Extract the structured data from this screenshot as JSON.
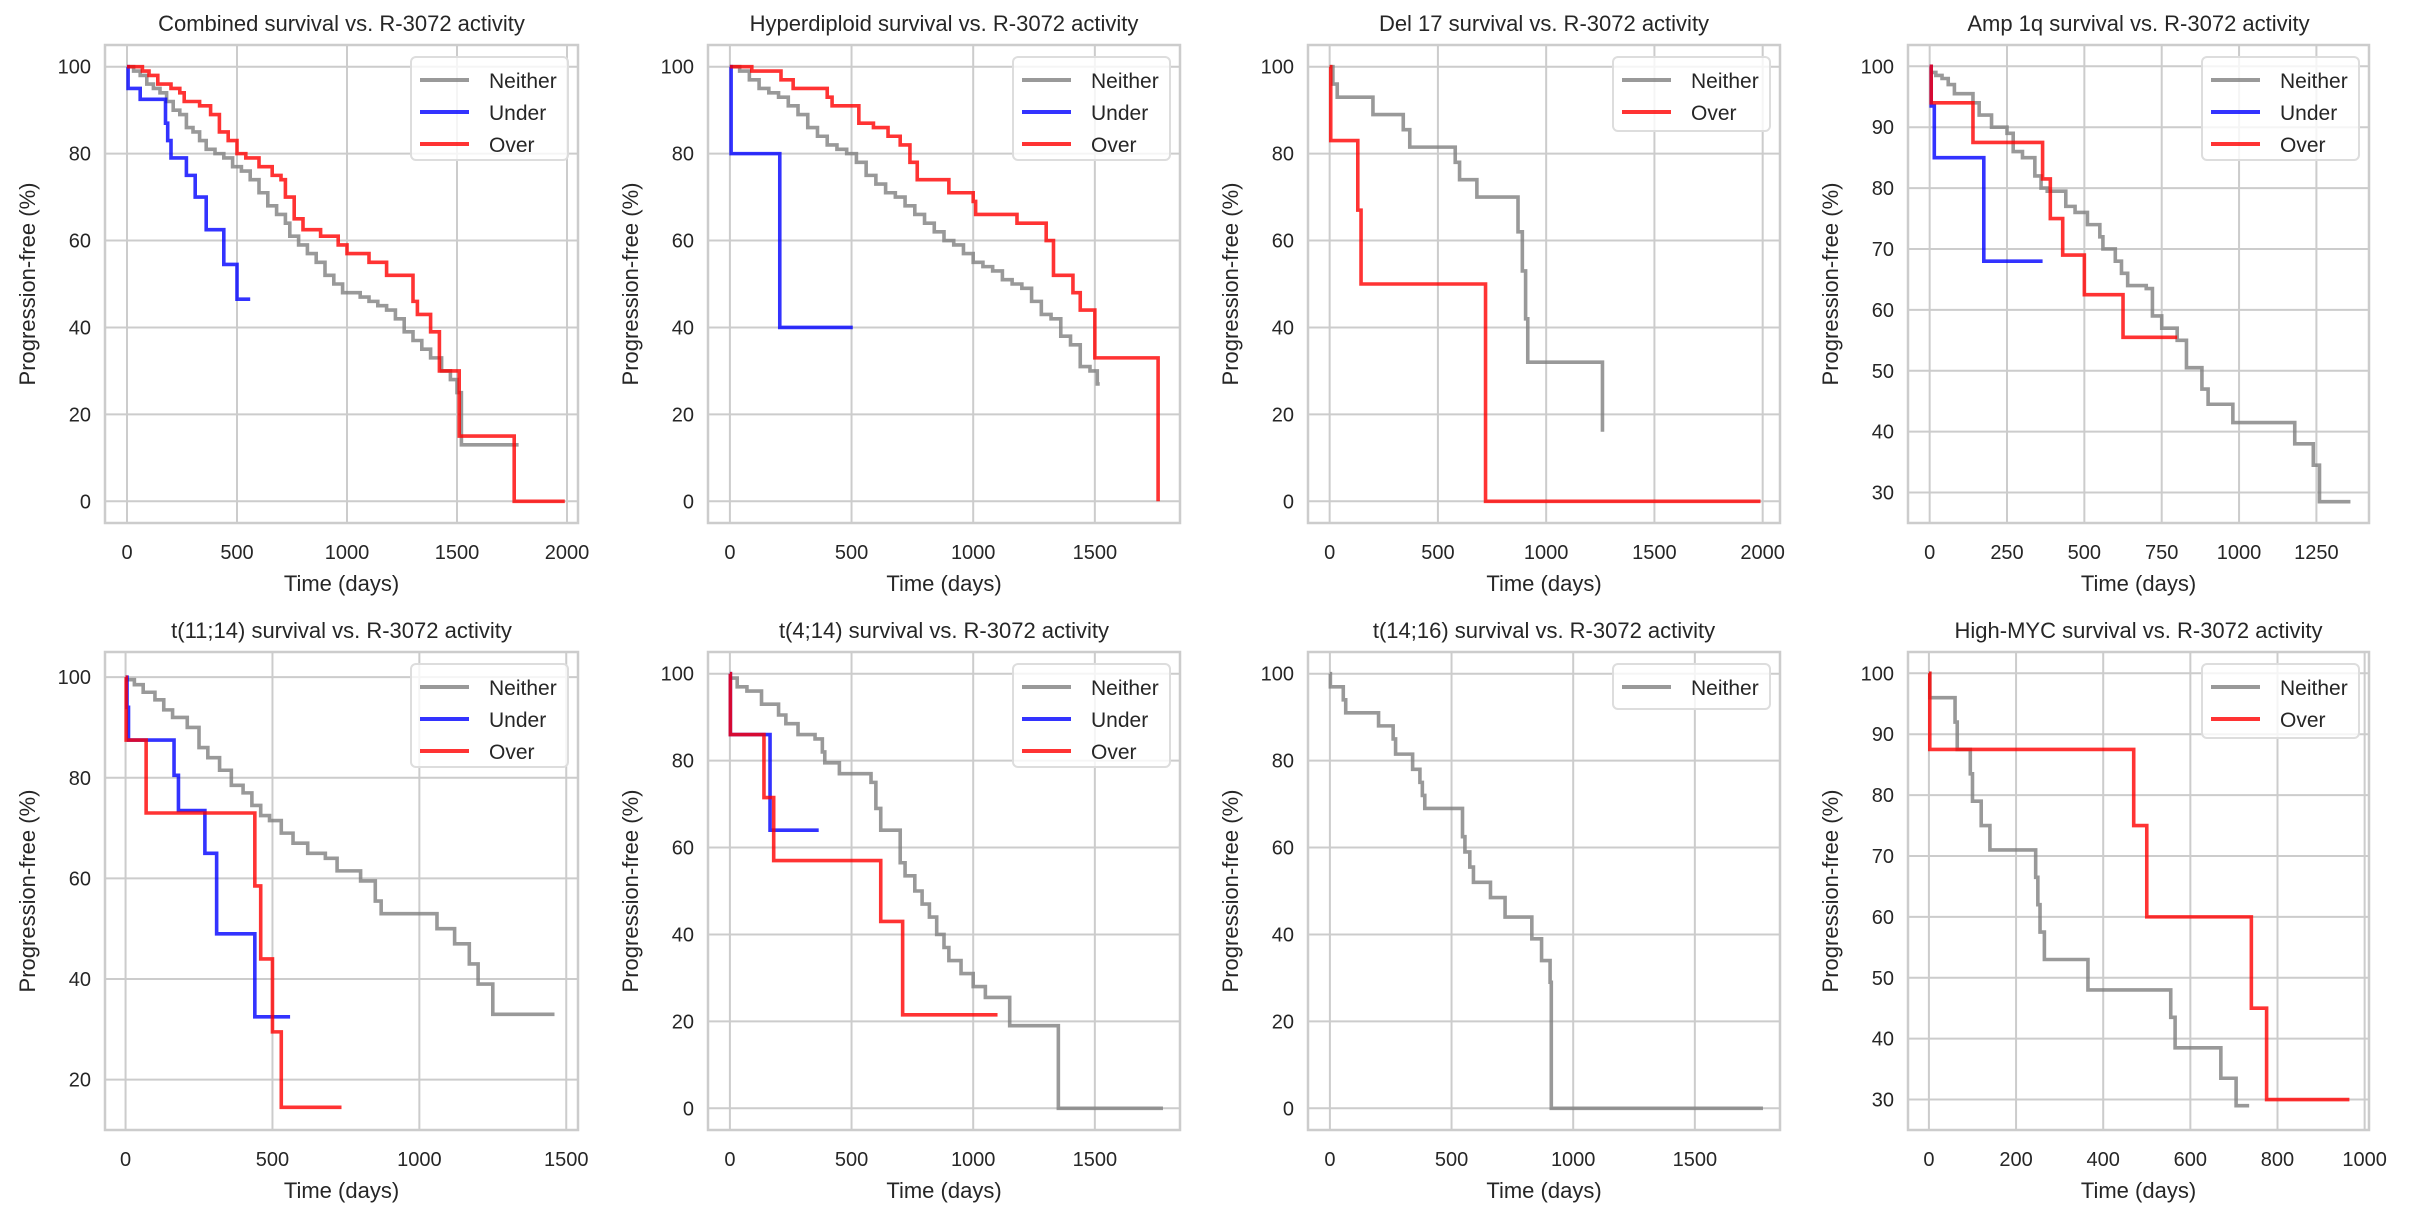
{
  "chart_data": [
    {
      "type": "line",
      "title": "Combined survival vs. R-3072 activity",
      "xlabel": "Time (days)",
      "ylabel": "Progression-free (%)",
      "xlim": [
        -100,
        2050
      ],
      "ylim": [
        -5,
        105
      ],
      "xticks": [
        0,
        500,
        1000,
        1500,
        2000
      ],
      "yticks": [
        0,
        20,
        40,
        60,
        80,
        100
      ],
      "grid": true,
      "legend_position": "top-right",
      "series": [
        {
          "name": "Neither",
          "color": "#808080",
          "x": [
            0,
            30,
            60,
            90,
            120,
            150,
            180,
            210,
            240,
            270,
            300,
            330,
            360,
            400,
            440,
            480,
            520,
            560,
            600,
            640,
            680,
            720,
            740,
            780,
            820,
            860,
            900,
            940,
            980,
            1020,
            1060,
            1100,
            1140,
            1180,
            1220,
            1260,
            1300,
            1340,
            1380,
            1430,
            1470,
            1500,
            1520,
            1780
          ],
          "y": [
            100,
            99,
            98,
            96,
            95,
            94,
            92,
            90,
            89,
            86,
            85,
            83,
            81,
            80,
            79,
            77,
            76,
            74,
            71,
            68,
            66,
            64,
            61,
            59,
            57,
            55,
            52,
            50,
            48,
            48,
            47,
            46,
            45,
            44,
            42,
            39,
            37,
            35,
            33,
            30,
            28,
            25,
            13,
            13
          ]
        },
        {
          "name": "Under",
          "color": "#0000ff",
          "x": [
            0,
            5,
            60,
            175,
            185,
            200,
            270,
            310,
            360,
            440,
            500,
            560
          ],
          "y": [
            100,
            95,
            92.5,
            87,
            83,
            79,
            75,
            70,
            62.5,
            54.5,
            46.5,
            46.5
          ]
        },
        {
          "name": "Over",
          "color": "#ff0000",
          "x": [
            0,
            70,
            100,
            140,
            200,
            240,
            260,
            330,
            380,
            420,
            460,
            500,
            540,
            600,
            660,
            700,
            720,
            760,
            800,
            880,
            960,
            1000,
            1100,
            1180,
            1300,
            1320,
            1380,
            1420,
            1440,
            1500,
            1510,
            1760,
            1990
          ],
          "y": [
            100,
            99,
            98,
            96,
            95,
            94,
            92,
            91,
            89,
            85,
            83,
            80,
            79,
            77,
            75,
            74,
            70,
            65,
            62.5,
            61,
            59,
            57,
            55,
            52,
            46,
            43,
            39,
            30,
            30,
            30,
            15,
            0,
            0
          ]
        }
      ]
    },
    {
      "type": "line",
      "title": "Hyperdiploid survival vs. R-3072 activity",
      "xlabel": "Time (days)",
      "ylabel": "Progression-free (%)",
      "xlim": [
        -90,
        1850
      ],
      "ylim": [
        -5,
        105
      ],
      "xticks": [
        0,
        500,
        1000,
        1500
      ],
      "yticks": [
        0,
        20,
        40,
        60,
        80,
        100
      ],
      "grid": true,
      "legend_position": "top-right",
      "series": [
        {
          "name": "Neither",
          "color": "#808080",
          "x": [
            0,
            40,
            80,
            120,
            160,
            200,
            240,
            280,
            320,
            360,
            400,
            440,
            480,
            520,
            560,
            600,
            640,
            680,
            720,
            760,
            800,
            840,
            880,
            920,
            960,
            1000,
            1040,
            1080,
            1120,
            1160,
            1200,
            1240,
            1280,
            1320,
            1360,
            1400,
            1440,
            1480,
            1510,
            1520
          ],
          "y": [
            100,
            99,
            97,
            95,
            94,
            93,
            91,
            89,
            86,
            84,
            82,
            81,
            80,
            78,
            75,
            73,
            71,
            70,
            68,
            66,
            64,
            62,
            60,
            59,
            57,
            55,
            54,
            53,
            51,
            50,
            49,
            46,
            43,
            42,
            38,
            36,
            31,
            30,
            27,
            27
          ]
        },
        {
          "name": "Under",
          "color": "#0000ff",
          "x": [
            0,
            5,
            205,
            505
          ],
          "y": [
            100,
            80,
            40,
            40
          ]
        },
        {
          "name": "Over",
          "color": "#ff0000",
          "x": [
            0,
            90,
            210,
            260,
            400,
            420,
            530,
            590,
            650,
            700,
            740,
            770,
            900,
            1000,
            1010,
            1180,
            1300,
            1330,
            1410,
            1440,
            1500,
            1760
          ],
          "y": [
            100,
            99,
            97,
            95,
            93,
            91,
            87,
            86,
            84,
            82,
            78,
            74,
            71,
            69,
            66,
            64,
            60,
            52,
            48,
            44,
            33,
            0
          ]
        }
      ]
    },
    {
      "type": "line",
      "title": "Del 17 survival vs. R-3072 activity",
      "xlabel": "Time (days)",
      "ylabel": "Progression-free (%)",
      "xlim": [
        -100,
        2080
      ],
      "ylim": [
        -5,
        105
      ],
      "xticks": [
        0,
        500,
        1000,
        1500,
        2000
      ],
      "yticks": [
        0,
        20,
        40,
        60,
        80,
        100
      ],
      "grid": true,
      "legend_position": "top-right",
      "series": [
        {
          "name": "Neither",
          "color": "#808080",
          "x": [
            0,
            15,
            35,
            200,
            340,
            370,
            580,
            600,
            680,
            870,
            890,
            905,
            915,
            1260
          ],
          "y": [
            100,
            96,
            93,
            89,
            85.5,
            81.5,
            78,
            74,
            70,
            62,
            53,
            42,
            32,
            16
          ]
        },
        {
          "name": "Over",
          "color": "#ff0000",
          "x": [
            0,
            5,
            130,
            145,
            720,
            1990
          ],
          "y": [
            100,
            83,
            67,
            50,
            0,
            0
          ]
        }
      ]
    },
    {
      "type": "line",
      "title": "Amp 1q survival vs. R-3072 activity",
      "xlabel": "Time (days)",
      "ylabel": "Progression-free (%)",
      "xlim": [
        -70,
        1420
      ],
      "ylim": [
        25,
        103.5
      ],
      "xticks": [
        0,
        250,
        500,
        750,
        1000,
        1250
      ],
      "yticks": [
        30,
        40,
        50,
        60,
        70,
        80,
        90,
        100
      ],
      "grid": true,
      "legend_position": "top-right",
      "series": [
        {
          "name": "Neither",
          "color": "#808080",
          "x": [
            0,
            20,
            40,
            60,
            80,
            140,
            160,
            200,
            250,
            270,
            300,
            340,
            360,
            380,
            440,
            470,
            510,
            550,
            560,
            600,
            620,
            640,
            700,
            720,
            750,
            800,
            830,
            880,
            900,
            980,
            1180,
            1240,
            1260,
            1360
          ],
          "y": [
            99,
            98.5,
            98,
            97,
            95.5,
            94,
            92,
            90,
            89,
            86,
            85,
            82,
            80,
            79.5,
            77,
            76,
            74,
            72,
            70,
            68,
            66,
            64,
            63.5,
            59,
            57,
            55,
            50.5,
            47,
            44.5,
            41.5,
            38,
            34.5,
            28.5,
            28.5
          ]
        },
        {
          "name": "Under",
          "color": "#0000ff",
          "x": [
            0,
            5,
            15,
            175,
            365
          ],
          "y": [
            100,
            93.5,
            85,
            68,
            68
          ]
        },
        {
          "name": "Over",
          "color": "#ff0000",
          "x": [
            0,
            5,
            140,
            365,
            390,
            430,
            500,
            625,
            800
          ],
          "y": [
            100,
            94,
            87.5,
            81.5,
            75,
            69,
            62.5,
            55.5,
            55.5
          ]
        }
      ]
    },
    {
      "type": "line",
      "title": "t(11;14) survival vs. R-3072 activity",
      "xlabel": "Time (days)",
      "ylabel": "Progression-free (%)",
      "xlim": [
        -70,
        1540
      ],
      "ylim": [
        10,
        105
      ],
      "xticks": [
        0,
        500,
        1000,
        1500
      ],
      "yticks": [
        20,
        40,
        60,
        80,
        100
      ],
      "grid": true,
      "legend_position": "top-right",
      "series": [
        {
          "name": "Neither",
          "color": "#808080",
          "x": [
            0,
            30,
            60,
            100,
            130,
            160,
            210,
            250,
            280,
            320,
            360,
            400,
            430,
            460,
            490,
            530,
            570,
            620,
            680,
            720,
            800,
            850,
            870,
            1060,
            1120,
            1170,
            1200,
            1250,
            1460
          ],
          "y": [
            99.5,
            98.5,
            97,
            95.5,
            93.5,
            92,
            90,
            86,
            84,
            81.5,
            78.5,
            77,
            74.5,
            72.5,
            71.5,
            69,
            67,
            65,
            64,
            61.5,
            59.5,
            55.5,
            53,
            50,
            47,
            43,
            39,
            33,
            33
          ]
        },
        {
          "name": "Under",
          "color": "#0000ff",
          "x": [
            0,
            5,
            10,
            165,
            180,
            270,
            310,
            440,
            560
          ],
          "y": [
            100,
            94,
            87.5,
            80.5,
            73.5,
            65,
            49,
            32.5,
            32.5
          ]
        },
        {
          "name": "Over",
          "color": "#ff0000",
          "x": [
            0,
            2,
            70,
            440,
            460,
            500,
            530,
            735
          ],
          "y": [
            100,
            87.5,
            73,
            58.5,
            44,
            29.5,
            14.5,
            14.5
          ]
        }
      ]
    },
    {
      "type": "line",
      "title": "t(4;14) survival vs. R-3072 activity",
      "xlabel": "Time (days)",
      "ylabel": "Progression-free (%)",
      "xlim": [
        -90,
        1850
      ],
      "ylim": [
        -5,
        105
      ],
      "xticks": [
        0,
        500,
        1000,
        1500
      ],
      "yticks": [
        0,
        20,
        40,
        60,
        80,
        100
      ],
      "grid": true,
      "legend_position": "top-right",
      "series": [
        {
          "name": "Neither",
          "color": "#808080",
          "x": [
            0,
            30,
            70,
            130,
            200,
            230,
            280,
            350,
            380,
            390,
            450,
            580,
            600,
            620,
            700,
            720,
            760,
            790,
            820,
            850,
            880,
            900,
            950,
            1000,
            1050,
            1150,
            1350,
            1780
          ],
          "y": [
            99,
            97,
            96,
            93,
            90.5,
            88.5,
            86,
            85,
            82,
            79.5,
            77,
            75,
            69,
            64,
            56.5,
            53.5,
            50,
            47,
            44,
            40,
            37,
            34,
            31,
            28,
            25.5,
            19,
            0,
            0
          ]
        },
        {
          "name": "Under",
          "color": "#0000ff",
          "x": [
            0,
            2,
            165,
            180,
            365
          ],
          "y": [
            100,
            86,
            64,
            64,
            64
          ]
        },
        {
          "name": "Over",
          "color": "#ff0000",
          "x": [
            0,
            2,
            140,
            180,
            620,
            710,
            1100
          ],
          "y": [
            100,
            86,
            71.5,
            57,
            43,
            21.5,
            21.5
          ]
        }
      ]
    },
    {
      "type": "line",
      "title": "t(14;16) survival vs. R-3072 activity",
      "xlabel": "Time (days)",
      "ylabel": "Progression-free (%)",
      "xlim": [
        -90,
        1850
      ],
      "ylim": [
        -5,
        105
      ],
      "xticks": [
        0,
        500,
        1000,
        1500
      ],
      "yticks": [
        0,
        20,
        40,
        60,
        80,
        100
      ],
      "grid": true,
      "legend_position": "top-right",
      "series": [
        {
          "name": "Neither",
          "color": "#808080",
          "x": [
            0,
            2,
            55,
            65,
            200,
            260,
            270,
            340,
            370,
            380,
            390,
            545,
            555,
            575,
            590,
            660,
            720,
            830,
            870,
            905,
            910,
            1780
          ],
          "y": [
            100,
            97,
            94,
            91,
            88,
            85,
            81.5,
            78,
            75,
            72,
            69,
            62.5,
            59,
            55.5,
            52,
            48.5,
            44,
            39,
            34,
            29,
            0,
            0
          ]
        }
      ]
    },
    {
      "type": "line",
      "title": "High-MYC survival vs. R-3072 activity",
      "xlabel": "Time (days)",
      "ylabel": "Progression-free (%)",
      "xlim": [
        -48,
        1010
      ],
      "ylim": [
        25,
        103.5
      ],
      "xticks": [
        0,
        200,
        400,
        600,
        800,
        1000
      ],
      "yticks": [
        30,
        40,
        50,
        60,
        70,
        80,
        90,
        100
      ],
      "grid": true,
      "legend_position": "top-right",
      "series": [
        {
          "name": "Neither",
          "color": "#808080",
          "x": [
            0,
            2,
            60,
            65,
            95,
            100,
            120,
            140,
            245,
            250,
            255,
            265,
            365,
            480,
            555,
            565,
            670,
            705,
            735
          ],
          "y": [
            100,
            96,
            92,
            87.5,
            83.5,
            79,
            75,
            71,
            66.5,
            62,
            57.5,
            53,
            48,
            48,
            43.5,
            38.5,
            33.5,
            29,
            29
          ]
        },
        {
          "name": "Over",
          "color": "#ff0000",
          "x": [
            0,
            2,
            470,
            500,
            740,
            775,
            965
          ],
          "y": [
            100,
            87.5,
            75,
            60,
            45,
            30,
            30
          ]
        }
      ]
    }
  ]
}
